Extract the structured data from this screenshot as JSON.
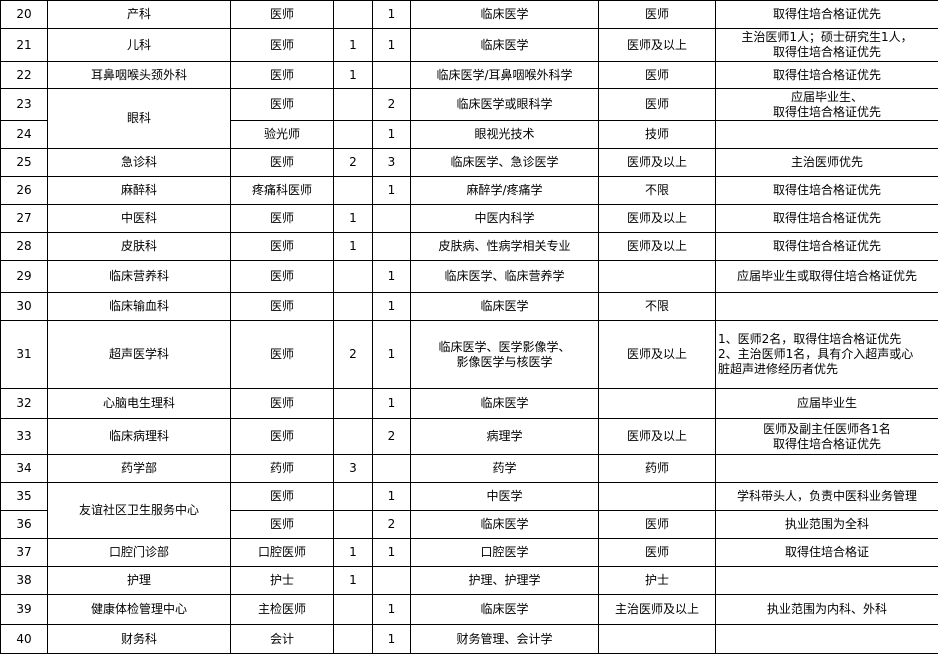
{
  "rows": [
    {
      "no": "20",
      "dept": "产科",
      "pos": "医师",
      "a": "",
      "b": "1",
      "major": "临床医学",
      "title": "医师",
      "note": "取得住培合格证优先"
    },
    {
      "no": "21",
      "dept": "儿科",
      "pos": "医师",
      "a": "1",
      "b": "1",
      "major": "临床医学",
      "title": "医师及以上",
      "note": "主治医师1人；硕士研究生1人，\n取得住培合格证优先"
    },
    {
      "no": "22",
      "dept": "耳鼻咽喉头颈外科",
      "pos": "医师",
      "a": "1",
      "b": "",
      "major": "临床医学/耳鼻咽喉外科学",
      "title": "医师",
      "note": "取得住培合格证优先"
    },
    {
      "no": "23",
      "dept": "眼科",
      "pos": "医师",
      "a": "",
      "b": "2",
      "major": "临床医学或眼科学",
      "title": "医师",
      "note": "应届毕业生、\n取得住培合格证优先"
    },
    {
      "no": "24",
      "pos": "验光师",
      "a": "",
      "b": "1",
      "major": "眼视光技术",
      "title": "技师",
      "note": ""
    },
    {
      "no": "25",
      "dept": "急诊科",
      "pos": "医师",
      "a": "2",
      "b": "3",
      "major": "临床医学、急诊医学",
      "title": "医师及以上",
      "note": "主治医师优先"
    },
    {
      "no": "26",
      "dept": "麻醉科",
      "pos": "疼痛科医师",
      "a": "",
      "b": "1",
      "major": "麻醉学/疼痛学",
      "title": "不限",
      "note": "取得住培合格证优先"
    },
    {
      "no": "27",
      "dept": "中医科",
      "pos": "医师",
      "a": "1",
      "b": "",
      "major": "中医内科学",
      "title": "医师及以上",
      "note": "取得住培合格证优先"
    },
    {
      "no": "28",
      "dept": "皮肤科",
      "pos": "医师",
      "a": "1",
      "b": "",
      "major": "皮肤病、性病学相关专业",
      "title": "医师及以上",
      "note": "取得住培合格证优先"
    },
    {
      "no": "29",
      "dept": "临床营养科",
      "pos": "医师",
      "a": "",
      "b": "1",
      "major": "临床医学、临床营养学",
      "title": "",
      "note": "应届毕业生或取得住培合格证优先"
    },
    {
      "no": "30",
      "dept": "临床输血科",
      "pos": "医师",
      "a": "",
      "b": "1",
      "major": "临床医学",
      "title": "不限",
      "note": ""
    },
    {
      "no": "31",
      "dept": "超声医学科",
      "pos": "医师",
      "a": "2",
      "b": "1",
      "major": "临床医学、医学影像学、\n影像医学与核医学",
      "title": "医师及以上",
      "note": "1、医师2名，取得住培合格证优先\n2、主治医师1名，具有介入超声或心\n脏超声进修经历者优先"
    },
    {
      "no": "32",
      "dept": "心脑电生理科",
      "pos": "医师",
      "a": "",
      "b": "1",
      "major": "临床医学",
      "title": "",
      "note": "应届毕业生"
    },
    {
      "no": "33",
      "dept": "临床病理科",
      "pos": "医师",
      "a": "",
      "b": "2",
      "major": "病理学",
      "title": "医师及以上",
      "note": "医师及副主任医师各1名\n取得住培合格证优先"
    },
    {
      "no": "34",
      "dept": "药学部",
      "pos": "药师",
      "a": "3",
      "b": "",
      "major": "药学",
      "title": "药师",
      "note": ""
    },
    {
      "no": "35",
      "dept": "友谊社区卫生服务中心",
      "pos": "医师",
      "a": "",
      "b": "1",
      "major": "中医学",
      "title": "",
      "note": "学科带头人，负责中医科业务管理"
    },
    {
      "no": "36",
      "pos": "医师",
      "a": "",
      "b": "2",
      "major": "临床医学",
      "title": "医师",
      "note": "执业范围为全科"
    },
    {
      "no": "37",
      "dept": "口腔门诊部",
      "pos": "口腔医师",
      "a": "1",
      "b": "1",
      "major": "口腔医学",
      "title": "医师",
      "note": "取得住培合格证"
    },
    {
      "no": "38",
      "dept": "护理",
      "pos": "护士",
      "a": "1",
      "b": "",
      "major": "护理、护理学",
      "title": "护士",
      "note": ""
    },
    {
      "no": "39",
      "dept": "健康体检管理中心",
      "pos": "主检医师",
      "a": "",
      "b": "1",
      "major": "临床医学",
      "title": "主治医师及以上",
      "note": "执业范围为内科、外科"
    },
    {
      "no": "40",
      "dept": "财务科",
      "pos": "会计",
      "a": "",
      "b": "1",
      "major": "财务管理、会计学",
      "title": "",
      "note": ""
    }
  ]
}
